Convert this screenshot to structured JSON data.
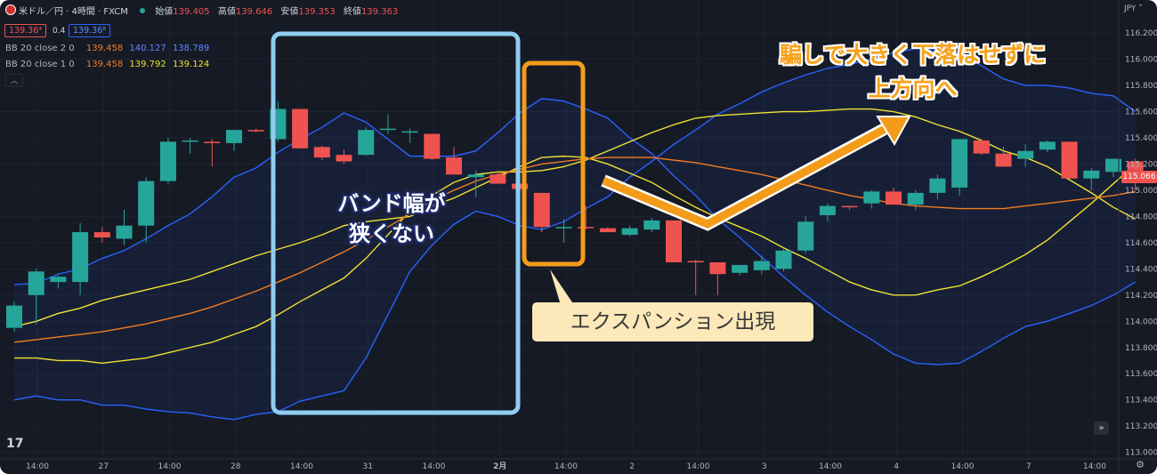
{
  "header": {
    "symbol": "米ドル／円 · 4時間 · FXCM",
    "labels": {
      "open": "始値",
      "high": "高値",
      "low": "安値",
      "close": "終値"
    },
    "values": {
      "open": "139.405",
      "high": "139.646",
      "low": "139.353",
      "close": "139.363"
    },
    "bid": "139.36⁴",
    "spread": "0.4",
    "ask": "139.36⁸",
    "bb1": {
      "label": "BB 20 close 2 0",
      "basis": "139.458",
      "upper": "140.127",
      "lower": "138.789"
    },
    "bb2": {
      "label": "BB 20 close 1 0",
      "basis": "139.458",
      "upper": "139.792",
      "lower": "139.124"
    },
    "currency": "JPY",
    "price_tag": "115.066"
  },
  "annotations": {
    "band_text_1": "バンド幅が",
    "band_text_2": "狭くない",
    "expansion": "エクスパンション出現",
    "fake_1": "騙しで大きく下落はせずに",
    "fake_2": "上方向へ"
  },
  "colors": {
    "bg": "#161a25",
    "up": "#26a69a",
    "down": "#ef5350",
    "upper_band": "#2962ff",
    "basis": "#f57c20",
    "inner_band": "#f0e234",
    "box_blue": "#8ecdf0",
    "box_orange": "#f39c1a",
    "callout_bg": "#fce8b8"
  },
  "chart_data": {
    "type": "candlestick",
    "y_axis": {
      "range": [
        112.95,
        116.35
      ],
      "ticks": [
        "116.200",
        "116.000",
        "115.800",
        "115.600",
        "115.400",
        "115.200",
        "115.000",
        "114.800",
        "114.600",
        "114.400",
        "114.200",
        "114.000",
        "113.800",
        "113.600",
        "113.400",
        "113.200",
        "113.000"
      ]
    },
    "x_ticks": [
      "14:00",
      "27",
      "14:00",
      "28",
      "14:00",
      "31",
      "14:00",
      "2月",
      "14:00",
      "2",
      "14:00",
      "3",
      "14:00",
      "4",
      "14:00",
      "7",
      "14:00"
    ],
    "candles": [
      {
        "o": 113.95,
        "h": 114.15,
        "l": 113.92,
        "c": 114.12
      },
      {
        "o": 114.2,
        "h": 114.4,
        "l": 113.98,
        "c": 114.38
      },
      {
        "o": 114.3,
        "h": 114.35,
        "l": 114.25,
        "c": 114.34
      },
      {
        "o": 114.3,
        "h": 114.75,
        "l": 114.2,
        "c": 114.68
      },
      {
        "o": 114.68,
        "h": 114.72,
        "l": 114.6,
        "c": 114.64
      },
      {
        "o": 114.63,
        "h": 114.85,
        "l": 114.58,
        "c": 114.73
      },
      {
        "o": 114.73,
        "h": 115.1,
        "l": 114.6,
        "c": 115.07
      },
      {
        "o": 115.07,
        "h": 115.4,
        "l": 115.05,
        "c": 115.37
      },
      {
        "o": 115.37,
        "h": 115.4,
        "l": 115.28,
        "c": 115.38
      },
      {
        "o": 115.37,
        "h": 115.39,
        "l": 115.18,
        "c": 115.36
      },
      {
        "o": 115.36,
        "h": 115.45,
        "l": 115.3,
        "c": 115.46
      },
      {
        "o": 115.46,
        "h": 115.47,
        "l": 115.44,
        "c": 115.45
      },
      {
        "o": 115.39,
        "h": 115.68,
        "l": 115.37,
        "c": 115.62
      },
      {
        "o": 115.62,
        "h": 115.62,
        "l": 115.32,
        "c": 115.32
      },
      {
        "o": 115.33,
        "h": 115.34,
        "l": 115.23,
        "c": 115.25
      },
      {
        "o": 115.27,
        "h": 115.31,
        "l": 115.2,
        "c": 115.22
      },
      {
        "o": 115.27,
        "h": 115.48,
        "l": 115.26,
        "c": 115.46
      },
      {
        "o": 115.46,
        "h": 115.58,
        "l": 115.43,
        "c": 115.47
      },
      {
        "o": 115.44,
        "h": 115.47,
        "l": 115.36,
        "c": 115.45
      },
      {
        "o": 115.43,
        "h": 115.43,
        "l": 115.23,
        "c": 115.24
      },
      {
        "o": 115.25,
        "h": 115.33,
        "l": 115.12,
        "c": 115.12
      },
      {
        "o": 115.1,
        "h": 115.15,
        "l": 114.95,
        "c": 115.12
      },
      {
        "o": 115.12,
        "h": 115.15,
        "l": 115.06,
        "c": 115.05
      },
      {
        "o": 115.05,
        "h": 115.05,
        "l": 114.98,
        "c": 115.01
      },
      {
        "o": 114.98,
        "h": 114.98,
        "l": 114.68,
        "c": 114.72
      },
      {
        "o": 114.72,
        "h": 114.78,
        "l": 114.6,
        "c": 114.72
      },
      {
        "o": 114.72,
        "h": 114.88,
        "l": 114.7,
        "c": 114.71
      },
      {
        "o": 114.71,
        "h": 114.72,
        "l": 114.68,
        "c": 114.68
      },
      {
        "o": 114.66,
        "h": 114.73,
        "l": 114.65,
        "c": 114.71
      },
      {
        "o": 114.7,
        "h": 114.79,
        "l": 114.68,
        "c": 114.77
      },
      {
        "o": 114.77,
        "h": 114.77,
        "l": 114.45,
        "c": 114.45
      },
      {
        "o": 114.46,
        "h": 114.47,
        "l": 114.2,
        "c": 114.45
      },
      {
        "o": 114.45,
        "h": 114.45,
        "l": 114.2,
        "c": 114.36
      },
      {
        "o": 114.37,
        "h": 114.43,
        "l": 114.35,
        "c": 114.43
      },
      {
        "o": 114.39,
        "h": 114.5,
        "l": 114.36,
        "c": 114.46
      },
      {
        "o": 114.4,
        "h": 114.55,
        "l": 114.38,
        "c": 114.54
      },
      {
        "o": 114.54,
        "h": 114.8,
        "l": 114.52,
        "c": 114.76
      },
      {
        "o": 114.81,
        "h": 114.9,
        "l": 114.76,
        "c": 114.88
      },
      {
        "o": 114.88,
        "h": 114.88,
        "l": 114.85,
        "c": 114.87
      },
      {
        "o": 114.9,
        "h": 115.0,
        "l": 114.86,
        "c": 114.99
      },
      {
        "o": 114.99,
        "h": 115.02,
        "l": 114.89,
        "c": 114.89
      },
      {
        "o": 114.89,
        "h": 115.0,
        "l": 114.85,
        "c": 114.98
      },
      {
        "o": 114.98,
        "h": 115.12,
        "l": 114.93,
        "c": 115.09
      },
      {
        "o": 115.02,
        "h": 115.38,
        "l": 114.96,
        "c": 115.39
      },
      {
        "o": 115.38,
        "h": 115.39,
        "l": 115.27,
        "c": 115.28
      },
      {
        "o": 115.28,
        "h": 115.33,
        "l": 115.18,
        "c": 115.18
      },
      {
        "o": 115.24,
        "h": 115.35,
        "l": 115.18,
        "c": 115.3
      },
      {
        "o": 115.31,
        "h": 115.38,
        "l": 115.29,
        "c": 115.37
      },
      {
        "o": 115.37,
        "h": 115.37,
        "l": 115.09,
        "c": 115.09
      },
      {
        "o": 115.09,
        "h": 115.17,
        "l": 115.0,
        "c": 115.15
      },
      {
        "o": 115.14,
        "h": 115.24,
        "l": 115.1,
        "c": 115.24
      },
      {
        "o": 115.22,
        "h": 115.24,
        "l": 115.0,
        "c": 115.15
      }
    ],
    "bands": {
      "upper_2sd": [
        113.4,
        113.43,
        113.4,
        113.4,
        113.36,
        113.36,
        113.33,
        113.31,
        113.3,
        113.27,
        113.25,
        113.29,
        113.31,
        113.39,
        113.43,
        113.47,
        113.72,
        114.05,
        114.38,
        114.58,
        114.74,
        114.84,
        114.8,
        114.73,
        114.7,
        114.76,
        114.86,
        114.95,
        115.1,
        115.22,
        115.35,
        115.46,
        115.58,
        115.66,
        115.75,
        115.82,
        115.88,
        115.93,
        115.96,
        116.0,
        116.05,
        116.08,
        116.07,
        116.04,
        115.95,
        115.85,
        115.8,
        115.8,
        115.78,
        115.74,
        115.72,
        115.6
      ],
      "upper_1sd": [
        113.72,
        113.72,
        113.7,
        113.7,
        113.68,
        113.7,
        113.72,
        113.76,
        113.8,
        113.84,
        113.9,
        113.96,
        114.05,
        114.15,
        114.24,
        114.33,
        114.48,
        114.66,
        114.84,
        114.96,
        115.06,
        115.12,
        115.14,
        115.14,
        115.15,
        115.18,
        115.23,
        115.3,
        115.37,
        115.44,
        115.5,
        115.55,
        115.57,
        115.58,
        115.59,
        115.6,
        115.6,
        115.61,
        115.62,
        115.62,
        115.6,
        115.56,
        115.5,
        115.45,
        115.38,
        115.3,
        115.25,
        115.18,
        115.08,
        114.98,
        114.87,
        114.78
      ],
      "basis": [
        113.84,
        113.86,
        113.88,
        113.9,
        113.92,
        113.95,
        113.98,
        114.02,
        114.06,
        114.11,
        114.17,
        114.23,
        114.3,
        114.37,
        114.45,
        114.53,
        114.62,
        114.72,
        114.82,
        114.92,
        115.0,
        115.07,
        115.12,
        115.16,
        115.2,
        115.22,
        115.24,
        115.25,
        115.25,
        115.25,
        115.23,
        115.21,
        115.18,
        115.15,
        115.12,
        115.08,
        115.04,
        115.0,
        114.96,
        114.93,
        114.9,
        114.88,
        114.87,
        114.86,
        114.86,
        114.86,
        114.88,
        114.9,
        114.92,
        114.94,
        114.96,
        114.99
      ],
      "lower_1sd": [
        113.96,
        114.0,
        114.06,
        114.1,
        114.16,
        114.2,
        114.24,
        114.28,
        114.32,
        114.38,
        114.44,
        114.5,
        114.55,
        114.6,
        114.66,
        114.73,
        114.76,
        114.78,
        114.8,
        114.88,
        114.94,
        115.02,
        115.1,
        115.18,
        115.25,
        115.26,
        115.25,
        115.2,
        115.13,
        115.06,
        114.96,
        114.87,
        114.79,
        114.72,
        114.65,
        114.56,
        114.48,
        114.39,
        114.3,
        114.24,
        114.2,
        114.2,
        114.24,
        114.27,
        114.34,
        114.42,
        114.51,
        114.62,
        114.76,
        114.9,
        115.05,
        115.2
      ],
      "lower_2sd": [
        114.28,
        114.29,
        114.36,
        114.4,
        114.48,
        114.54,
        114.63,
        114.73,
        114.82,
        114.95,
        115.1,
        115.17,
        115.29,
        115.39,
        115.48,
        115.59,
        115.52,
        115.39,
        115.26,
        115.26,
        115.26,
        115.3,
        115.44,
        115.59,
        115.7,
        115.68,
        115.62,
        115.55,
        115.4,
        115.28,
        115.11,
        114.96,
        114.78,
        114.64,
        114.49,
        114.34,
        114.2,
        114.07,
        113.96,
        113.86,
        113.75,
        113.68,
        113.67,
        113.68,
        113.77,
        113.87,
        113.96,
        114.0,
        114.06,
        114.12,
        114.2,
        114.3
      ]
    }
  }
}
